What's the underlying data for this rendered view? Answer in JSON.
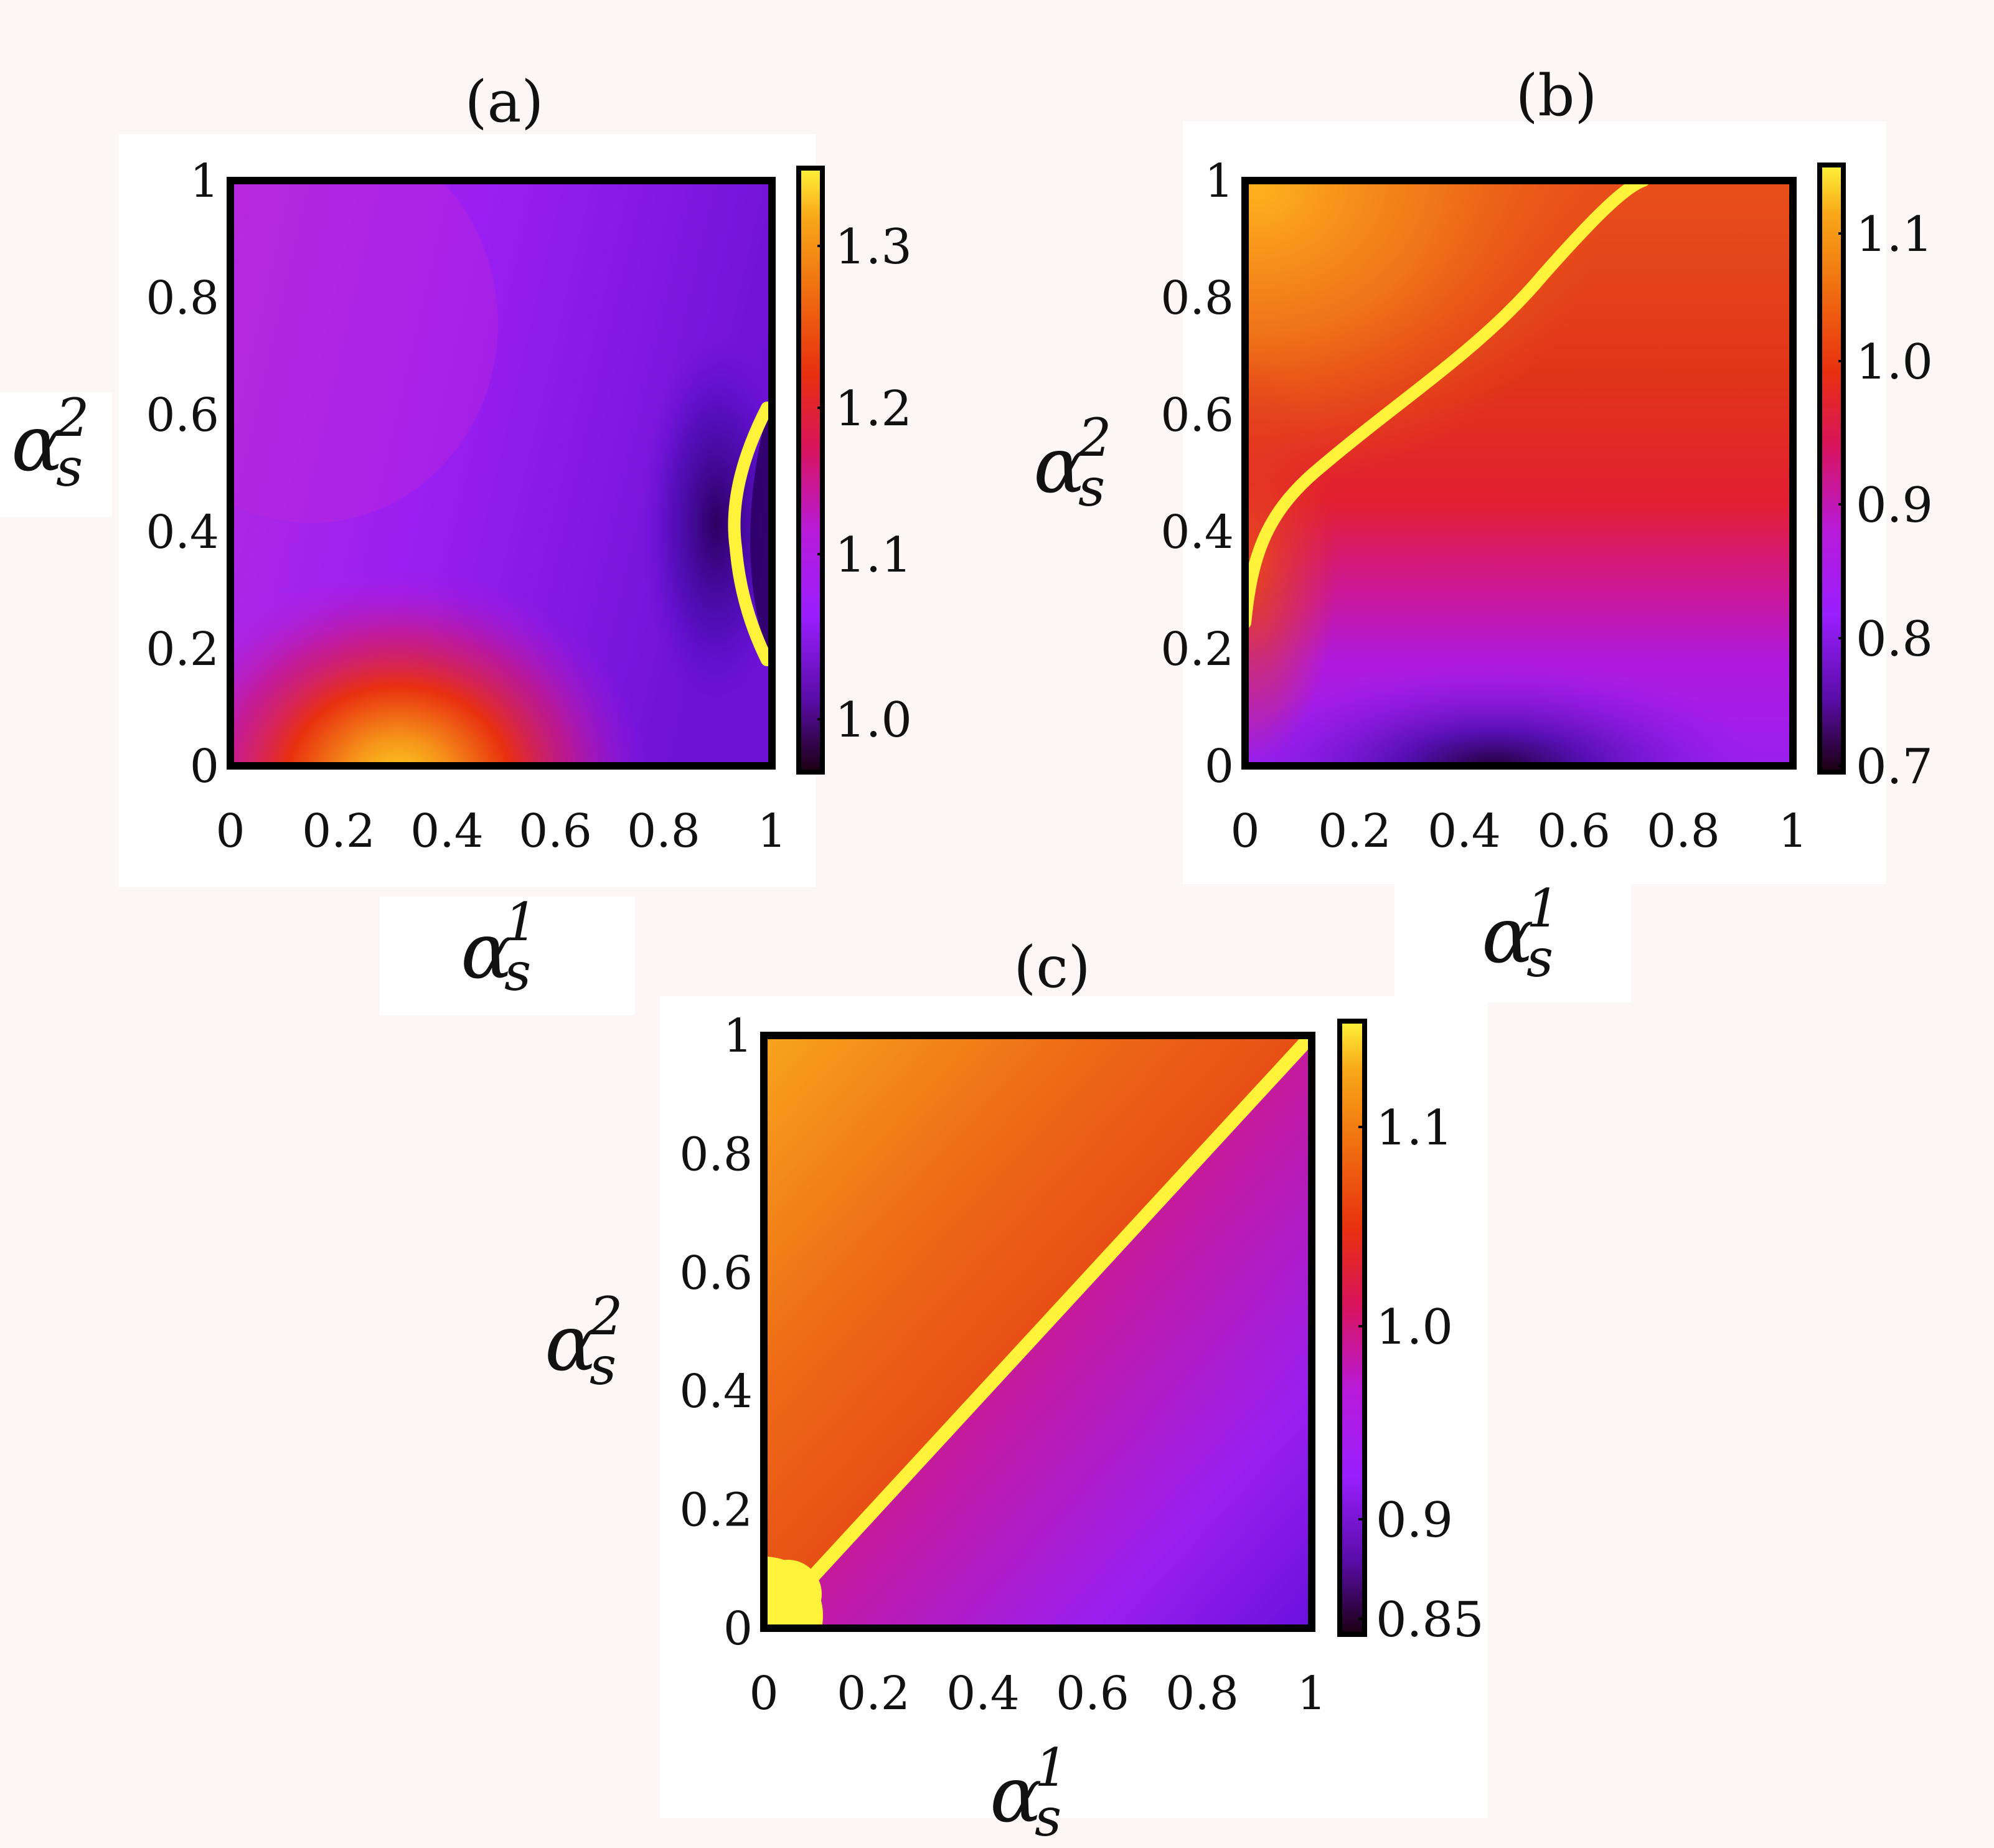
{
  "chart_data": [
    {
      "type": "heatmap",
      "panel": "(a)",
      "title": "(a)",
      "x": {
        "symbol": "α",
        "sub": "s",
        "sup": "1"
      },
      "y": {
        "symbol": "α",
        "sub": "s",
        "sup": "2"
      },
      "xlim": [
        0,
        1
      ],
      "ylim": [
        0,
        1
      ],
      "xticks": [
        "0",
        "0.2",
        "0.4",
        "0.6",
        "0.8",
        "1"
      ],
      "yticks": [
        "0",
        "0.2",
        "0.4",
        "0.6",
        "0.8",
        "1"
      ],
      "colorbar": {
        "ticks": [
          "1.0",
          "1.1",
          "1.2",
          "1.3"
        ],
        "range": [
          0.95,
          1.35
        ]
      },
      "features": [
        "hot region near (0.35, 0.0)",
        "yellow contour near x = 1, y 0.2–0.6"
      ],
      "colors": [
        "#1a0010",
        "#5a0ca8",
        "#9a1fff",
        "#b81ad8",
        "#d9145a",
        "#e8300f",
        "#f07010",
        "#f8a818",
        "#fff23a"
      ]
    },
    {
      "type": "heatmap",
      "panel": "(b)",
      "title": "(b)",
      "x": {
        "symbol": "α",
        "sub": "s",
        "sup": "1"
      },
      "y": {
        "symbol": "α",
        "sub": "s",
        "sup": "2"
      },
      "xlim": [
        0,
        1
      ],
      "ylim": [
        0,
        1
      ],
      "xticks": [
        "0",
        "0.2",
        "0.4",
        "0.6",
        "0.8",
        "1"
      ],
      "yticks": [
        "0",
        "0.2",
        "0.4",
        "0.6",
        "0.8",
        "1"
      ],
      "colorbar": {
        "ticks": [
          "0.7",
          "0.8",
          "0.9",
          "1.0",
          "1.1"
        ],
        "range": [
          0.68,
          1.15
        ]
      },
      "features": [
        "yellow contour from (0.0, 0.25) curving to (0.72, 1.0)",
        "dark minimum near (0.45, 0.0)"
      ]
    },
    {
      "type": "heatmap",
      "panel": "(c)",
      "title": "(c)",
      "x": {
        "symbol": "α",
        "sub": "s",
        "sup": "1"
      },
      "y": {
        "symbol": "α",
        "sub": "s",
        "sup": "2"
      },
      "xlim": [
        0,
        1
      ],
      "ylim": [
        0,
        1
      ],
      "xticks": [
        "0",
        "0.2",
        "0.4",
        "0.6",
        "0.8",
        "1"
      ],
      "yticks": [
        "0",
        "0.2",
        "0.4",
        "0.6",
        "0.8",
        "1"
      ],
      "colorbar": {
        "ticks": [
          "0.85",
          "0.9",
          "1.0",
          "1.1"
        ],
        "range": [
          0.83,
          1.14
        ]
      },
      "features": [
        "yellow diagonal contour along y = x",
        "yellow blob near origin"
      ]
    }
  ]
}
